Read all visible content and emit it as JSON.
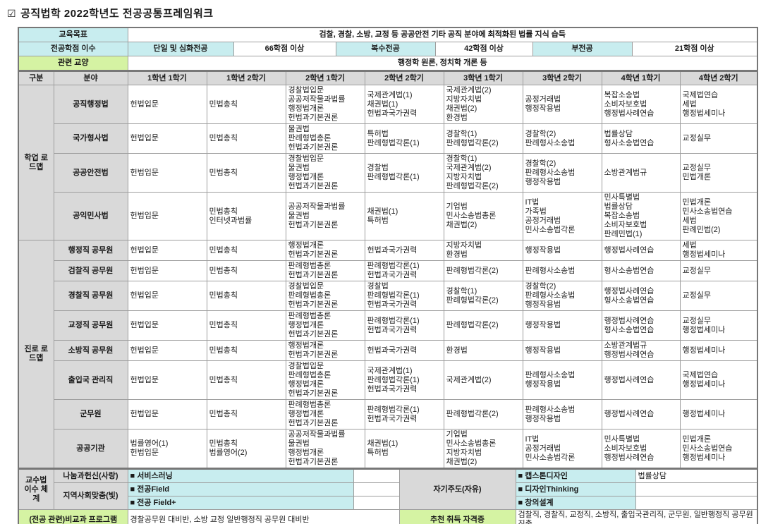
{
  "title": {
    "checkbox": "☑",
    "text": "공직법학 2022학년도 전공공통프레임워크"
  },
  "colors": {
    "accent_cyan": "#c8edef",
    "accent_green": "#d5f3a3",
    "label_grey": "#d9d9d9",
    "border_grey": "#9e9e9e"
  },
  "summary": {
    "goal_label": "교육목표",
    "goal_text": "검찰, 경찰, 소방, 교정 등 공공안전 기타 공직 분야에 최적화된 법률 지식 습득",
    "credits_label": "전공학점 이수",
    "credits": [
      {
        "label": "단일 및 심화전공",
        "value": "66학점 이상"
      },
      {
        "label": "복수전공",
        "value": "42학점 이상"
      },
      {
        "label": "부전공",
        "value": "21학점 이상"
      }
    ],
    "liberal_label": "관련 교양",
    "liberal_text": "행정학 원론, 정치학 개론 등"
  },
  "table": {
    "headers": [
      "구분",
      "분야",
      "1학년 1학기",
      "1학년 2학기",
      "2학년 1학기",
      "2학년 2학기",
      "3학년 1학기",
      "3학년 2학기",
      "4학년 1학기",
      "4학년 2학기"
    ],
    "sections": [
      {
        "group": "학업 로드맵",
        "rows": [
          {
            "field": "공직행정법",
            "semesters": [
              [
                "헌법입문"
              ],
              [
                "민법총칙"
              ],
              [
                "경찰법입문",
                "공공저작물과법률",
                "행정법개론",
                "헌법과기본권론"
              ],
              [
                "국제관계법(1)",
                "채권법(1)",
                "헌법과국가권력"
              ],
              [
                "국제관계법(2)",
                "지방자치법",
                "채권법(2)",
                "환경법"
              ],
              [
                "공정거래법",
                "행정작용법"
              ],
              [
                "복잡소송법",
                "소비자보호법",
                "행정법사례연습"
              ],
              [
                "국제법연습",
                "세법",
                "행정법세미나"
              ]
            ]
          },
          {
            "field": "국가형사법",
            "semesters": [
              [
                "헌법입문"
              ],
              [
                "민법총칙"
              ],
              [
                "물권법",
                "판례형법총론",
                "헌법과기본권론"
              ],
              [
                "특허법",
                "판례형법각론(1)"
              ],
              [
                "경찰학(1)",
                "판례형법각론(2)"
              ],
              [
                "경찰학(2)",
                "판례형사소송법"
              ],
              [
                "법률상담",
                "형사소송법연습"
              ],
              [
                "교정실무"
              ]
            ]
          },
          {
            "field": "공공안전법",
            "semesters": [
              [
                "헌법입문"
              ],
              [
                "민법총칙"
              ],
              [
                "경찰법입문",
                "물권법",
                "행정법개론",
                "헌법과기본권론"
              ],
              [
                "경찰법",
                "판례형법각론(1)"
              ],
              [
                "경찰학(1)",
                "국제관계법(2)",
                "지방자치법",
                "판례형법각론(2)"
              ],
              [
                "경찰학(2)",
                "판례형사소송법",
                "행정작용법"
              ],
              [
                "소방관계법규"
              ],
              [
                "교정실무",
                "민법개론"
              ]
            ]
          },
          {
            "field": "공익민사법",
            "semesters": [
              [
                "헌법입문"
              ],
              [
                "민법총칙",
                "인터넷과법률"
              ],
              [
                "공공저작물과법률",
                "물권법",
                "헌법과기본권론"
              ],
              [
                "채권법(1)",
                "특허법"
              ],
              [
                "기업법",
                "민사소송법총론",
                "채권법(2)"
              ],
              [
                "IT법",
                "가족법",
                "공정거래법",
                "민사소송법각론"
              ],
              [
                "민사특별법",
                "법률상담",
                "복잡소송법",
                "소비자보호법",
                "판례민법(1)"
              ],
              [
                "민법개론",
                "민사소송법연습",
                "세법",
                "판례민법(2)"
              ]
            ]
          }
        ]
      },
      {
        "group": "진로 로드맵",
        "rows": [
          {
            "field": "행정직 공무원",
            "semesters": [
              [
                "헌법입문"
              ],
              [
                "민법총칙"
              ],
              [
                "행정법개론",
                "헌법과기본권론"
              ],
              [
                "헌법과국가권력"
              ],
              [
                "지방자치법",
                "환경법"
              ],
              [
                "행정작용법"
              ],
              [
                "행정법사례연습"
              ],
              [
                "세법",
                "행정법세미나"
              ]
            ]
          },
          {
            "field": "검찰직 공무원",
            "semesters": [
              [
                "헌법입문"
              ],
              [
                "민법총칙"
              ],
              [
                "판례형법총론",
                "헌법과기본권론"
              ],
              [
                "판례형법각론(1)",
                "헌법과국가권력"
              ],
              [
                "판례형법각론(2)"
              ],
              [
                "판례형사소송법"
              ],
              [
                "형사소송법연습"
              ],
              [
                "교정실무"
              ]
            ]
          },
          {
            "field": "경찰직 공무원",
            "semesters": [
              [
                "헌법입문"
              ],
              [
                "민법총칙"
              ],
              [
                "경찰법입문",
                "판례형법총론",
                "헌법과기본권론"
              ],
              [
                "경찰법",
                "판례형법각론(1)",
                "헌법과국가권력"
              ],
              [
                "경찰학(1)",
                "판례형법각론(2)"
              ],
              [
                "경찰학(2)",
                "판례형사소송법",
                "행정작용법"
              ],
              [
                "행정법사례연습",
                "형사소송법연습"
              ],
              [
                "교정실무"
              ]
            ]
          },
          {
            "field": "교정직 공무원",
            "semesters": [
              [
                "헌법입문"
              ],
              [
                "민법총칙"
              ],
              [
                "판례형법총론",
                "행정법개론",
                "헌법과기본권론"
              ],
              [
                "판례형법각론(1)",
                "헌법과국가권력"
              ],
              [
                "판례형법각론(2)"
              ],
              [
                "행정작용법"
              ],
              [
                "행정법사례연습",
                "형사소송법연습"
              ],
              [
                "교정실무",
                "행정법세미나"
              ]
            ]
          },
          {
            "field": "소방직 공무원",
            "semesters": [
              [
                "헌법입문"
              ],
              [
                "민법총칙"
              ],
              [
                "행정법개론",
                "헌법과기본권론"
              ],
              [
                "헌법과국가권력"
              ],
              [
                "환경법"
              ],
              [
                "행정작용법"
              ],
              [
                "소방관계법규",
                "행정법사례연습"
              ],
              [
                "행정법세미나"
              ]
            ]
          },
          {
            "field": "출입국 관리직",
            "semesters": [
              [
                "헌법입문"
              ],
              [
                "민법총칙"
              ],
              [
                "경찰법입문",
                "판례형법총론",
                "행정법개론",
                "헌법과기본권론"
              ],
              [
                "국제관계법(1)",
                "판례형법각론(1)",
                "헌법과국가권력"
              ],
              [
                "국제관계법(2)"
              ],
              [
                "판례형사소송법",
                "행정작용법"
              ],
              [
                "행정법사례연습"
              ],
              [
                "국제법연습",
                "행정법세미나"
              ]
            ]
          },
          {
            "field": "군무원",
            "semesters": [
              [
                "헌법입문"
              ],
              [
                "민법총칙"
              ],
              [
                "판례형법총론",
                "행정법개론",
                "헌법과기본권론"
              ],
              [
                "판례형법각론(1)",
                "헌법과국가권력"
              ],
              [
                "판례형법각론(2)"
              ],
              [
                "판례형사소송법",
                "행정작용법"
              ],
              [
                "행정법사례연습"
              ],
              [
                "행정법세미나"
              ]
            ]
          },
          {
            "field": "공공기관",
            "semesters": [
              [
                "법률영어(1)",
                "헌법입문"
              ],
              [
                "민법총칙",
                "법률영어(2)"
              ],
              [
                "공공저작물과법률",
                "물권법",
                "행정법개론",
                "헌법과기본권론"
              ],
              [
                "채권법(1)",
                "특허법"
              ],
              [
                "기업법",
                "민사소송법총론",
                "지방자치법",
                "채권법(2)"
              ],
              [
                "IT법",
                "공정거래법",
                "민사소송법각론"
              ],
              [
                "민사특별법",
                "소비자보호법",
                "행정법사례연습"
              ],
              [
                "민법개론",
                "민사소송법연습",
                "행정법세미나"
              ]
            ]
          }
        ]
      }
    ]
  },
  "footer": {
    "pedagogy_label": "교수법 이수 체계",
    "group1": {
      "name": "나눔과헌신(사랑)",
      "item1": "■ 서비스러닝"
    },
    "group2": {
      "name": "지역사회맞춤(빛)",
      "item1": "■ 전공Field",
      "item2": "■ 전공 Field+"
    },
    "group3": {
      "name": "자기주도(자유)",
      "item1": "■ 캡스톤디자인",
      "item2": "■ 디자인Thinking",
      "item3": "■ 창의설계",
      "note1": "법률상담"
    },
    "extracurricular": {
      "label": "(전공 관련)비교과 프로그램",
      "text": "경찰공무원 대비반, 소방 교정 일반행정직 공무원 대비반"
    },
    "certificates": {
      "label": "추천 취득 자격증",
      "text": "검찰직, 경찰직, 교정직, 소방직, 출입국관리직, 군무원, 일반행정직 공무원 진출"
    }
  }
}
